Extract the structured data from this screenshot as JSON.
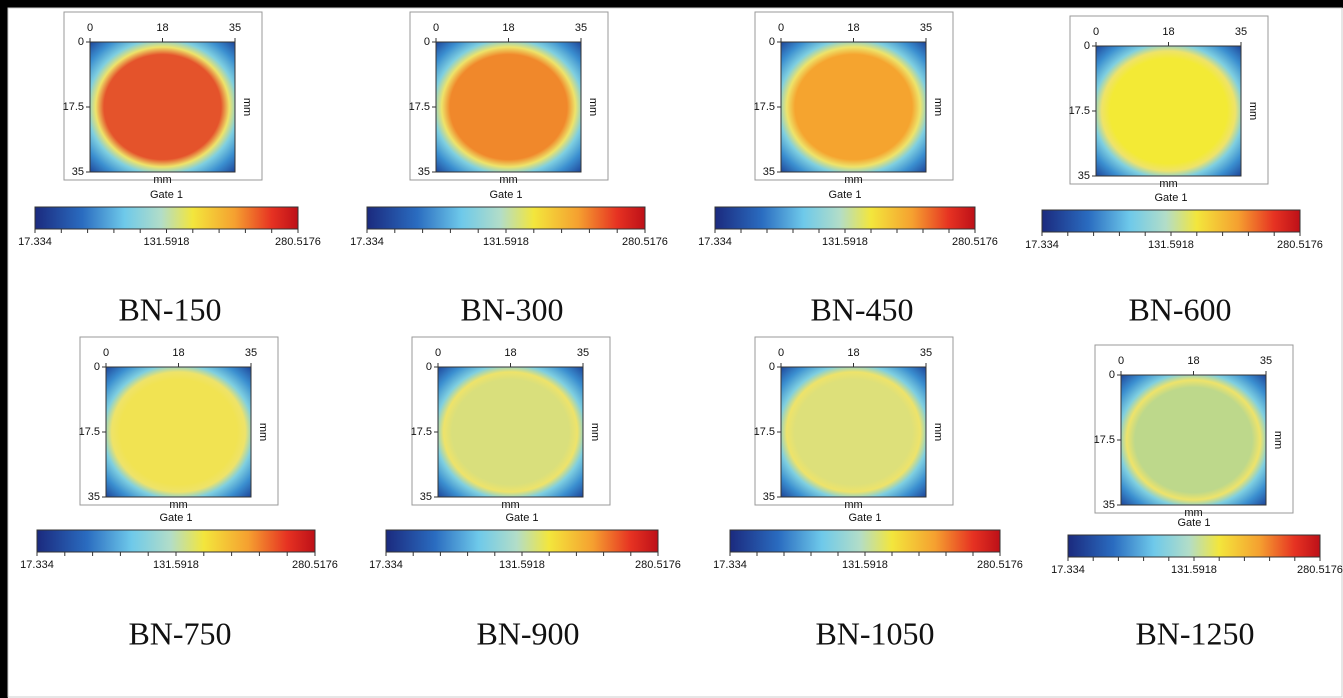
{
  "panels": [
    {
      "label": "BN-150",
      "x_ticks": [
        "0",
        "18",
        "35"
      ],
      "y_ticks": [
        "0",
        "17.5",
        "35"
      ],
      "x_axis_label": "mm",
      "y_axis_label": "mm",
      "colorbar_title": "Gate 1",
      "colorbar_labels": [
        "17.334",
        "131.5918",
        "280.5176"
      ],
      "center_color": "#e4532b"
    },
    {
      "label": "BN-300",
      "x_ticks": [
        "0",
        "18",
        "35"
      ],
      "y_ticks": [
        "0",
        "17.5",
        "35"
      ],
      "x_axis_label": "mm",
      "y_axis_label": "mm",
      "colorbar_title": "Gate 1",
      "colorbar_labels": [
        "17.334",
        "131.5918",
        "280.5176"
      ],
      "center_color": "#f0882b"
    },
    {
      "label": "BN-450",
      "x_ticks": [
        "0",
        "18",
        "35"
      ],
      "y_ticks": [
        "0",
        "17.5",
        "35"
      ],
      "x_axis_label": "mm",
      "y_axis_label": "mm",
      "colorbar_title": "Gate 1",
      "colorbar_labels": [
        "17.334",
        "131.5918",
        "280.5176"
      ],
      "center_color": "#f5a42f"
    },
    {
      "label": "BN-600",
      "x_ticks": [
        "0",
        "18",
        "35"
      ],
      "y_ticks": [
        "0",
        "17.5",
        "35"
      ],
      "x_axis_label": "mm",
      "y_axis_label": "mm",
      "colorbar_title": "Gate 1",
      "colorbar_labels": [
        "17.334",
        "131.5918",
        "280.5176"
      ],
      "center_color": "#f3ea35"
    },
    {
      "label": "BN-750",
      "x_ticks": [
        "0",
        "18",
        "35"
      ],
      "y_ticks": [
        "0",
        "17.5",
        "35"
      ],
      "x_axis_label": "mm",
      "y_axis_label": "mm",
      "colorbar_title": "Gate 1",
      "colorbar_labels": [
        "17.334",
        "131.5918",
        "280.5176"
      ],
      "center_color": "#f1e352"
    },
    {
      "label": "BN-900",
      "x_ticks": [
        "0",
        "18",
        "35"
      ],
      "y_ticks": [
        "0",
        "17.5",
        "35"
      ],
      "x_axis_label": "mm",
      "y_axis_label": "mm",
      "colorbar_title": "Gate 1",
      "colorbar_labels": [
        "17.334",
        "131.5918",
        "280.5176"
      ],
      "center_color": "#d9df7c"
    },
    {
      "label": "BN-1050",
      "x_ticks": [
        "0",
        "18",
        "35"
      ],
      "y_ticks": [
        "0",
        "17.5",
        "35"
      ],
      "x_axis_label": "mm",
      "y_axis_label": "mm",
      "colorbar_title": "Gate 1",
      "colorbar_labels": [
        "17.334",
        "131.5918",
        "280.5176"
      ],
      "center_color": "#dde07a"
    },
    {
      "label": "BN-1250",
      "x_ticks": [
        "0",
        "18",
        "35"
      ],
      "y_ticks": [
        "0",
        "17.5",
        "35"
      ],
      "x_axis_label": "mm",
      "y_axis_label": "mm",
      "colorbar_title": "Gate 1",
      "colorbar_labels": [
        "17.334",
        "131.5918",
        "280.5176"
      ],
      "center_color": "#bdd88b"
    }
  ]
}
